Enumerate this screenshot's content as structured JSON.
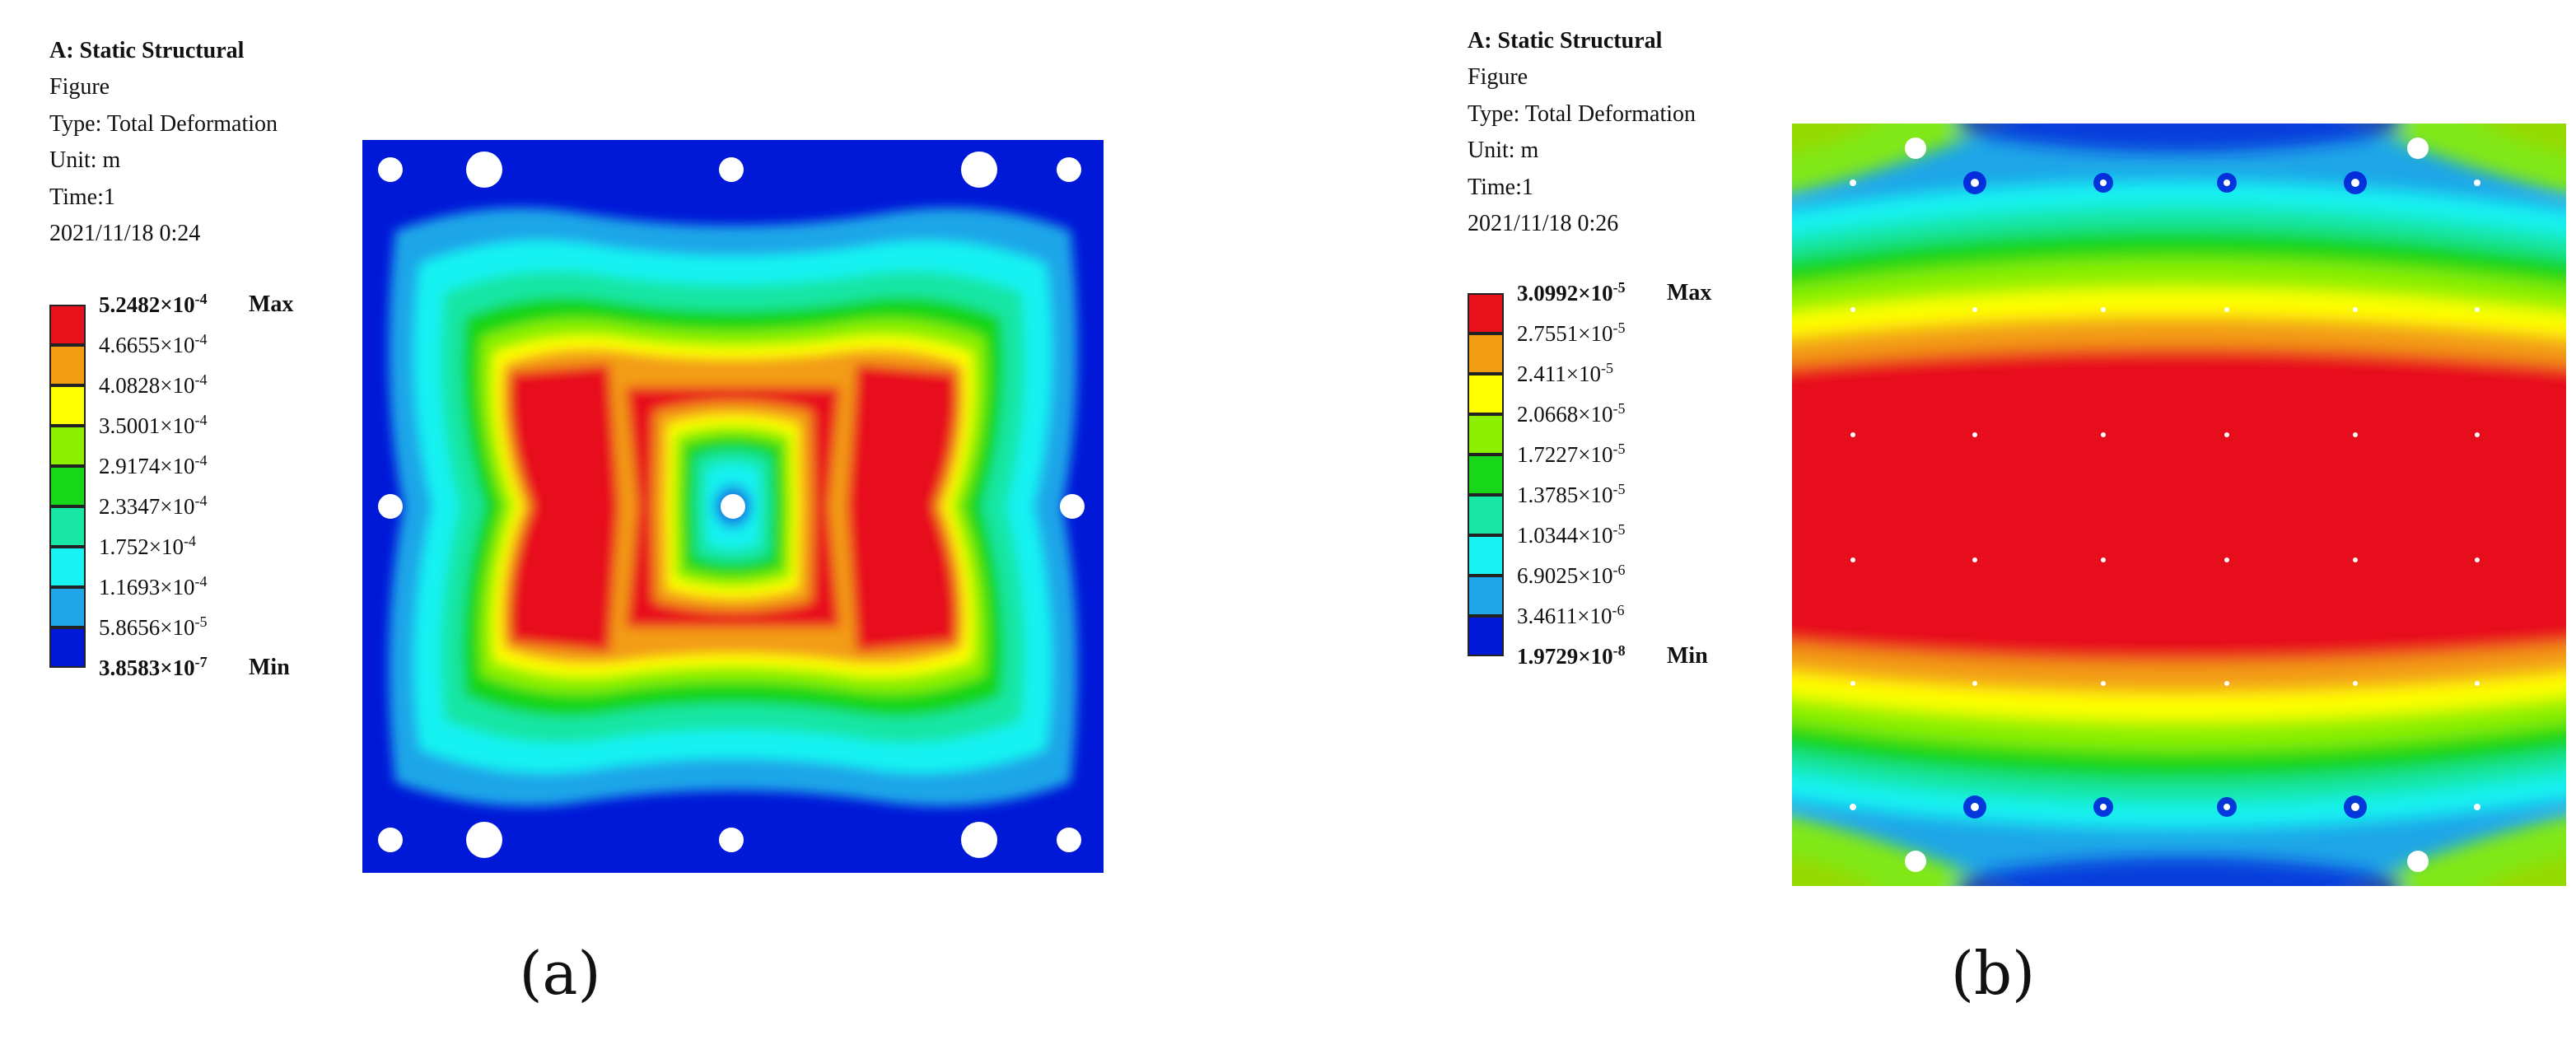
{
  "panels": [
    {
      "caption": "(a)",
      "info": {
        "title": "A: Static Structural",
        "figure": "Figure",
        "type": "Type: Total Deformation",
        "unit": "Unit: m",
        "time": "Time:1",
        "date": "2021/11/18 0:24"
      },
      "legend": {
        "max_tag": "Max",
        "min_tag": "Min",
        "colors": [
          "#e8101a",
          "#f39d13",
          "#ffff00",
          "#8cf000",
          "#18d618",
          "#18e6a4",
          "#18f2f2",
          "#1ea6e8",
          "#0018d8"
        ],
        "levels": [
          {
            "mantissa": "5.2482×10",
            "exp": "-4"
          },
          {
            "mantissa": "4.6655×10",
            "exp": "-4"
          },
          {
            "mantissa": "4.0828×10",
            "exp": "-4"
          },
          {
            "mantissa": "3.5001×10",
            "exp": "-4"
          },
          {
            "mantissa": "2.9174×10",
            "exp": "-4"
          },
          {
            "mantissa": "2.3347×10",
            "exp": "-4"
          },
          {
            "mantissa": "1.752×10",
            "exp": "-4"
          },
          {
            "mantissa": "1.1693×10",
            "exp": "-4"
          },
          {
            "mantissa": "5.8656×10",
            "exp": "-5"
          },
          {
            "mantissa": "3.8583×10",
            "exp": "-7"
          }
        ]
      }
    },
    {
      "caption": "(b)",
      "info": {
        "title": "A: Static Structural",
        "figure": "Figure",
        "type": "Type: Total Deformation",
        "unit": "Unit: m",
        "time": "Time:1",
        "date": "2021/11/18 0:26"
      },
      "legend": {
        "max_tag": "Max",
        "min_tag": "Min",
        "colors": [
          "#e8101a",
          "#f39d13",
          "#ffff00",
          "#8cf000",
          "#18d618",
          "#18e6a4",
          "#18f2f2",
          "#1ea6e8",
          "#0018d8"
        ],
        "levels": [
          {
            "mantissa": "3.0992×10",
            "exp": "-5"
          },
          {
            "mantissa": "2.7551×10",
            "exp": "-5"
          },
          {
            "mantissa": "2.411×10",
            "exp": "-5"
          },
          {
            "mantissa": "2.0668×10",
            "exp": "-5"
          },
          {
            "mantissa": "1.7227×10",
            "exp": "-5"
          },
          {
            "mantissa": "1.3785×10",
            "exp": "-5"
          },
          {
            "mantissa": "1.0344×10",
            "exp": "-5"
          },
          {
            "mantissa": "6.9025×10",
            "exp": "-6"
          },
          {
            "mantissa": "3.4611×10",
            "exp": "-6"
          },
          {
            "mantissa": "1.9729×10",
            "exp": "-8"
          }
        ]
      }
    }
  ]
}
